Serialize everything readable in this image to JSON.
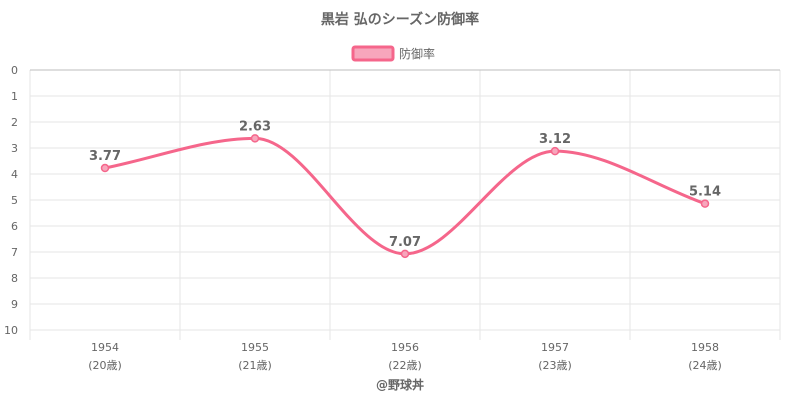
{
  "chart_data": {
    "type": "line",
    "title": "黒岩 弘のシーズン防御率",
    "legend": {
      "position": "top",
      "entries": [
        "防御率"
      ]
    },
    "x_categories": [
      "1954",
      "1955",
      "1956",
      "1957",
      "1958"
    ],
    "x_sublabels": [
      "(20歳)",
      "(21歳)",
      "(22歳)",
      "(23歳)",
      "(24歳)"
    ],
    "y_ticks": [
      "0",
      "1",
      "2",
      "3",
      "4",
      "5",
      "6",
      "7",
      "8",
      "9",
      "10"
    ],
    "ylim": [
      0,
      10
    ],
    "y_reversed": true,
    "grid": true,
    "series": [
      {
        "name": "防御率",
        "values": [
          3.77,
          2.63,
          7.07,
          3.12,
          5.14
        ],
        "labels": [
          "3.77",
          "2.63",
          "7.07",
          "3.12",
          "5.14"
        ]
      }
    ],
    "colors": {
      "line": "#f5668b",
      "fill": "#f7a6bc",
      "grid": "#e6e6e6",
      "axis": "#bdbdbd",
      "text": "#666666"
    }
  },
  "credit": "@野球丼"
}
